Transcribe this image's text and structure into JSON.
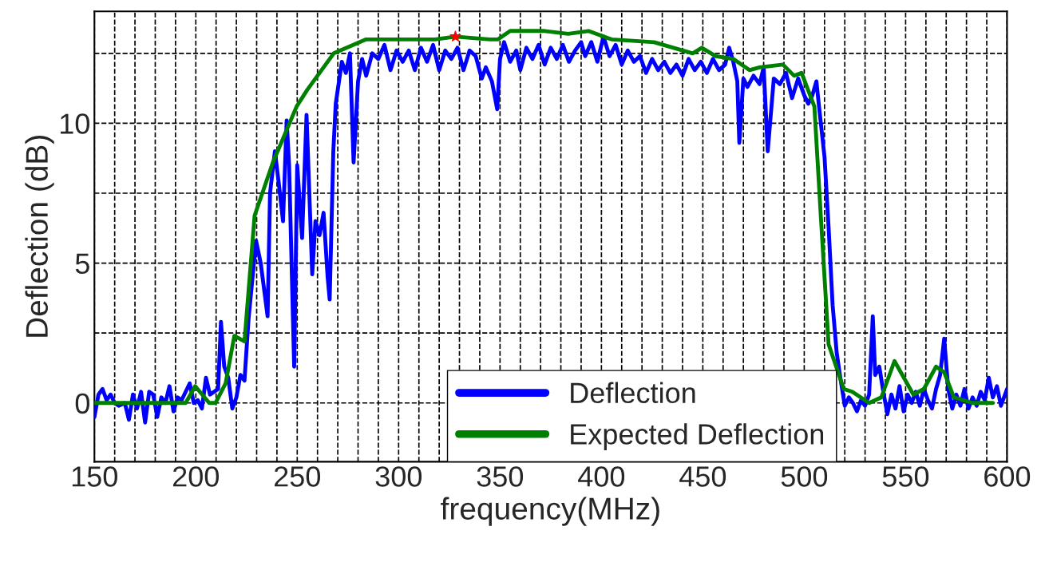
{
  "chart_data": {
    "type": "line",
    "xlabel": "frequency(MHz)",
    "ylabel": "Deflection (dB)",
    "xlim": [
      150,
      600
    ],
    "ylim": [
      -2.1,
      14
    ],
    "xticks": [
      150,
      {
        "value": 160,
        "label": null
      },
      {
        "value": 170,
        "label": null
      },
      {
        "value": 180,
        "label": null
      },
      {
        "value": 190,
        "label": null
      },
      200,
      {
        "value": 210,
        "label": null
      },
      {
        "value": 220,
        "label": null
      },
      {
        "value": 230,
        "label": null
      },
      {
        "value": 240,
        "label": null
      },
      250,
      {
        "value": 260,
        "label": null
      },
      {
        "value": 270,
        "label": null
      },
      {
        "value": 280,
        "label": null
      },
      {
        "value": 290,
        "label": null
      },
      300,
      {
        "value": 310,
        "label": null
      },
      {
        "value": 320,
        "label": null
      },
      {
        "value": 330,
        "label": null
      },
      {
        "value": 340,
        "label": null
      },
      350,
      {
        "value": 360,
        "label": null
      },
      {
        "value": 370,
        "label": null
      },
      {
        "value": 380,
        "label": null
      },
      {
        "value": 390,
        "label": null
      },
      400,
      {
        "value": 410,
        "label": null
      },
      {
        "value": 420,
        "label": null
      },
      {
        "value": 430,
        "label": null
      },
      {
        "value": 440,
        "label": null
      },
      450,
      {
        "value": 460,
        "label": null
      },
      {
        "value": 470,
        "label": null
      },
      {
        "value": 480,
        "label": null
      },
      {
        "value": 490,
        "label": null
      },
      500,
      {
        "value": 510,
        "label": null
      },
      {
        "value": 520,
        "label": null
      },
      {
        "value": 530,
        "label": null
      },
      {
        "value": 540,
        "label": null
      },
      550,
      {
        "value": 560,
        "label": null
      },
      {
        "value": 570,
        "label": null
      },
      {
        "value": 580,
        "label": null
      },
      {
        "value": 590,
        "label": null
      },
      600
    ],
    "yticks": [
      0,
      {
        "value": 2.5,
        "label": null
      },
      5,
      {
        "value": 7.5,
        "label": null
      },
      10,
      {
        "value": 12.5,
        "label": null
      }
    ],
    "grid": true,
    "legend": "bottom",
    "series": [
      {
        "name": "Deflection",
        "color": "#0000ff",
        "x": [
          150,
          152,
          154,
          156,
          158,
          160,
          162,
          165,
          167,
          169,
          171,
          173,
          175,
          177,
          179,
          181,
          183,
          185,
          187,
          189,
          191,
          193,
          195,
          197,
          199,
          201,
          203,
          205,
          207,
          209,
          211,
          212.4,
          214,
          216,
          218,
          220,
          222,
          224,
          226,
          229.7,
          232,
          235.4,
          236.6,
          239,
          241,
          243,
          244.8,
          246,
          248.5,
          250,
          252.4,
          254.6,
          257.4,
          259,
          261,
          263,
          265,
          266,
          267.8,
          269,
          272,
          274,
          276,
          277.8,
          280,
          282,
          284,
          287,
          290,
          293,
          296,
          299,
          302,
          305,
          308,
          311,
          314,
          317,
          320,
          323,
          326,
          329,
          332,
          335,
          338,
          341,
          343,
          346,
          348.6,
          350,
          352,
          355,
          358,
          360,
          363,
          366,
          369,
          372,
          375,
          378,
          381,
          384,
          387,
          390,
          392,
          395,
          398,
          401,
          404,
          407,
          410,
          413,
          416,
          419,
          422,
          425,
          428,
          431,
          434,
          437,
          440,
          443,
          446,
          449,
          452,
          455,
          458,
          461,
          463,
          465,
          467,
          468,
          470,
          472,
          475,
          478,
          480,
          482,
          485,
          488,
          491,
          494,
          497,
          500,
          502,
          504,
          506,
          507,
          510,
          512,
          514,
          516,
          518,
          520,
          522,
          524,
          526,
          528,
          530,
          532,
          533.8,
          535,
          537,
          539,
          541,
          543,
          545,
          547,
          549,
          551,
          553,
          555,
          557,
          559,
          561,
          563,
          565,
          567,
          569,
          571,
          573,
          575,
          577,
          579,
          581,
          583,
          585,
          587,
          589,
          591,
          593,
          595,
          597,
          599,
          600
        ],
        "values": [
          -0.5,
          0.3,
          0.5,
          0.1,
          0.3,
          0,
          -0.1,
          0,
          -0.6,
          0.3,
          -0.2,
          0.4,
          -0.7,
          0.4,
          0.3,
          -0.5,
          0.2,
          0,
          0.6,
          -0.3,
          0.2,
          0.1,
          0.4,
          0.7,
          0,
          0.1,
          -0.2,
          0.9,
          0.3,
          0.4,
          0.5,
          2.9,
          1.3,
          0.9,
          -0.2,
          0.2,
          1.0,
          0.8,
          3.0,
          5.8,
          5.0,
          3.1,
          7.5,
          9.0,
          7.8,
          6.5,
          10.1,
          8.5,
          1.3,
          8.5,
          5.9,
          10.3,
          4.6,
          6.5,
          6.0,
          6.8,
          4.5,
          3.7,
          9.0,
          10.7,
          12.2,
          11.8,
          12.5,
          8.6,
          11.5,
          12.3,
          11.7,
          12.5,
          12.3,
          12.8,
          11.9,
          12.6,
          12.2,
          12.6,
          11.9,
          12.7,
          12.2,
          12.8,
          11.9,
          12.6,
          12.3,
          12.7,
          11.9,
          12.6,
          12.4,
          11.6,
          12.0,
          11.5,
          10.5,
          12.3,
          12.9,
          12.2,
          12.6,
          11.9,
          12.7,
          12.3,
          12.8,
          12.1,
          12.7,
          12.3,
          12.8,
          12.2,
          12.6,
          12.9,
          12.4,
          12.9,
          12.2,
          13.1,
          12.4,
          12.8,
          12.1,
          12.6,
          12.2,
          12.4,
          11.8,
          12.3,
          11.9,
          12.2,
          11.8,
          12.1,
          11.7,
          12.3,
          11.9,
          12.2,
          11.8,
          12.3,
          11.9,
          12.1,
          12.7,
          12.2,
          11.5,
          9.3,
          11.6,
          11.3,
          11.7,
          11.4,
          12.0,
          9.0,
          11.6,
          11.4,
          11.8,
          10.9,
          11.6,
          11.0,
          10.7,
          11.0,
          11.5,
          10.8,
          8.8,
          6.3,
          3.5,
          1.8,
          0.8,
          -0.1,
          0.2,
          0,
          -0.3,
          0.1,
          -0.1,
          0.3,
          3.1,
          1.0,
          1.3,
          0.4,
          -0.4,
          0.3,
          -0.2,
          0.6,
          -0.3,
          0.3,
          0,
          0.4,
          -0.1,
          0.5,
          0.1,
          -0.2,
          0.5,
          1.0,
          2.3,
          0.5,
          -0.2,
          0.3,
          -0.1,
          0.5,
          -0.2,
          0.2,
          -0.1,
          0.4,
          0.1,
          0.9,
          0.2,
          0.6,
          -0.1,
          0.3,
          0.5
        ]
      },
      {
        "name": "Expected Deflection",
        "color": "#008000",
        "x": [
          150,
          195,
          199.7,
          206.6,
          209.7,
          214.7,
          219,
          224,
          229,
          238,
          249.7,
          255,
          268,
          284,
          318,
          328,
          345,
          349,
          355,
          372,
          383.6,
          393.6,
          405,
          426,
          445,
          449.5,
          456.4,
          465,
          473,
          478,
          489.5,
          495,
          498.7,
          505,
          508,
          512,
          519.5,
          523.7,
          532,
          538,
          544.5,
          553.8,
          559,
          565,
          569,
          573.8,
          583,
          593
        ],
        "values": [
          0,
          0,
          0.6,
          0,
          0,
          0.7,
          2.4,
          2.2,
          6.7,
          8.6,
          10.6,
          11.2,
          12.5,
          13.0,
          13.0,
          13.1,
          13.0,
          13.0,
          13.3,
          13.3,
          13.2,
          13.3,
          13.0,
          12.9,
          12.5,
          12.7,
          12.4,
          12.3,
          11.9,
          12.0,
          12.1,
          11.7,
          11.8,
          10.6,
          6.9,
          2.1,
          0.5,
          0.4,
          0,
          0.2,
          1.5,
          0.3,
          0.5,
          1.3,
          1.1,
          0.2,
          0,
          0
        ]
      },
      {
        "type": "scatter",
        "marker": "star",
        "color": "#ff0000",
        "x": [
          328
        ],
        "values": [
          13.1
        ]
      }
    ]
  }
}
